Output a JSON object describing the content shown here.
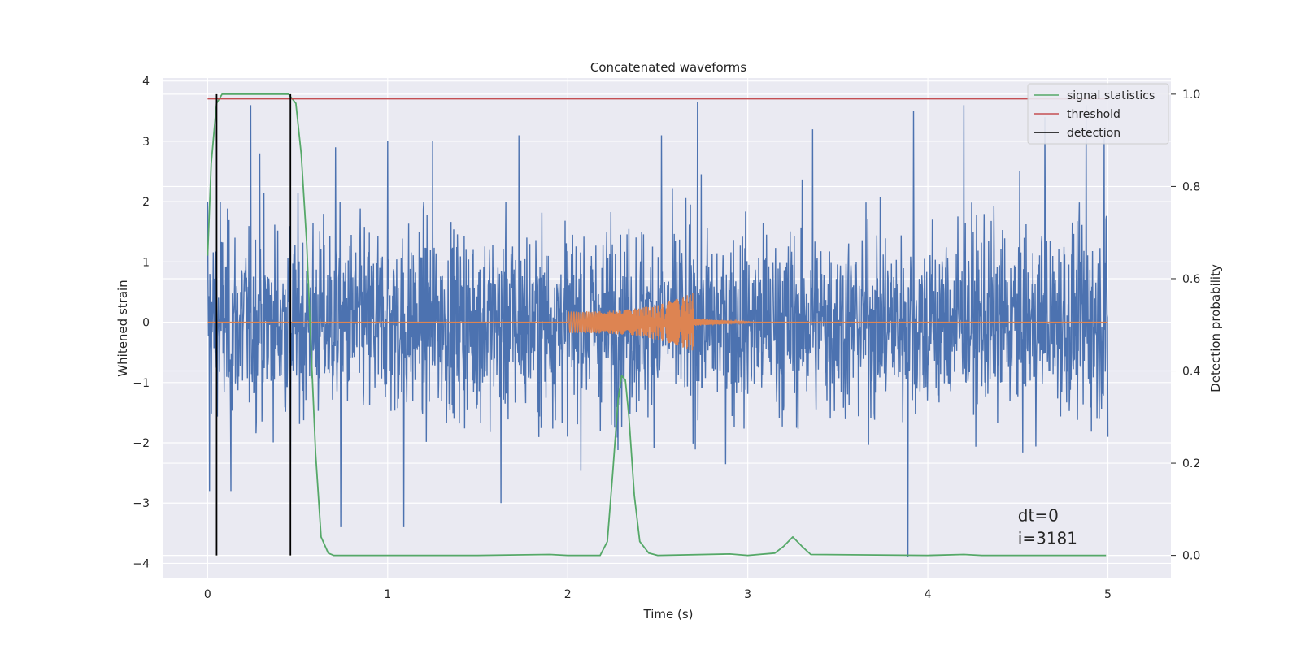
{
  "chart_data": {
    "type": "line",
    "title": "Concatenated waveforms",
    "xlabel": "Time (s)",
    "ylabel": "Whitened strain",
    "y2label": "Detection probability",
    "xlim": [
      -0.25,
      5.35
    ],
    "ylim": [
      -4.25,
      4.05
    ],
    "y2lim": [
      -0.05,
      1.035
    ],
    "xticks": [
      0,
      1,
      2,
      3,
      4,
      5
    ],
    "yticks": [
      -4,
      -3,
      -2,
      -1,
      0,
      1,
      2,
      3,
      4
    ],
    "y2ticks": [
      0.0,
      0.2,
      0.4,
      0.6,
      0.8,
      1.0
    ],
    "grid": true,
    "legend_position": "top-right",
    "colors": {
      "noise": "#4c72b0",
      "template": "#dd8452",
      "statistics": "#55a868",
      "threshold": "#c44e52",
      "detection": "#000000",
      "background": "#eaeaf2"
    },
    "series": [
      {
        "name": "",
        "axis": "left",
        "kind": "noise",
        "x_range": [
          0,
          5
        ],
        "typical_amplitude": 1.0,
        "peaks": [
          {
            "x": 0.0,
            "y": 2.0
          },
          {
            "x": 0.01,
            "y": -2.8
          },
          {
            "x": 0.07,
            "y": 2.0
          },
          {
            "x": 0.13,
            "y": -2.8
          },
          {
            "x": 0.24,
            "y": 3.6
          },
          {
            "x": 0.29,
            "y": 2.8
          },
          {
            "x": 0.46,
            "y": -2.6
          },
          {
            "x": 0.71,
            "y": 2.9
          },
          {
            "x": 0.74,
            "y": -3.4
          },
          {
            "x": 1.0,
            "y": 3.0
          },
          {
            "x": 1.09,
            "y": -3.4
          },
          {
            "x": 1.25,
            "y": 3.0
          },
          {
            "x": 1.63,
            "y": -3.0
          },
          {
            "x": 1.73,
            "y": 3.1
          },
          {
            "x": 2.52,
            "y": 3.1
          },
          {
            "x": 2.72,
            "y": 3.65
          },
          {
            "x": 3.36,
            "y": 3.2
          },
          {
            "x": 3.89,
            "y": -3.9
          },
          {
            "x": 3.92,
            "y": 3.5
          },
          {
            "x": 4.2,
            "y": 3.6
          },
          {
            "x": 4.65,
            "y": 3.4
          },
          {
            "x": 4.88,
            "y": 3.6
          },
          {
            "x": 4.98,
            "y": 3.2
          },
          {
            "x": 5.0,
            "y": -1.9
          }
        ]
      },
      {
        "name": "",
        "axis": "left",
        "kind": "chirp",
        "x_range": [
          0,
          5
        ],
        "chirp_start": 2.0,
        "chirp_end": 2.7,
        "amplitude_start": 0.18,
        "amplitude_end": 0.5
      },
      {
        "name": "signal statistics",
        "axis": "right",
        "x": [
          0.0,
          0.02,
          0.05,
          0.08,
          0.45,
          0.49,
          0.52,
          0.55,
          0.58,
          0.6,
          0.63,
          0.67,
          0.7,
          1.5,
          1.9,
          2.0,
          2.1,
          2.18,
          2.22,
          2.25,
          2.28,
          2.3,
          2.32,
          2.34,
          2.37,
          2.4,
          2.45,
          2.5,
          2.9,
          3.0,
          3.15,
          3.2,
          3.25,
          3.3,
          3.35,
          4.0,
          4.2,
          4.3,
          4.99
        ],
        "y": [
          0.65,
          0.85,
          0.98,
          1.0,
          1.0,
          0.98,
          0.87,
          0.68,
          0.4,
          0.22,
          0.04,
          0.005,
          0.0,
          0.0,
          0.002,
          0.0,
          0.0,
          0.0,
          0.03,
          0.18,
          0.34,
          0.39,
          0.38,
          0.3,
          0.13,
          0.03,
          0.005,
          0.0,
          0.003,
          0.0,
          0.005,
          0.02,
          0.04,
          0.02,
          0.002,
          0.0,
          0.002,
          0.0,
          0.0
        ]
      },
      {
        "name": "threshold",
        "axis": "right",
        "x": [
          0,
          5
        ],
        "y": [
          0.99,
          0.99
        ]
      }
    ],
    "detections": {
      "name": "detection",
      "axis": "right",
      "x": [
        0.05,
        0.46
      ],
      "ymin": 0.0,
      "ymax": 1.0
    },
    "legend": [
      "signal statistics",
      "threshold",
      "detection"
    ],
    "annotation": {
      "line1": "dt=0",
      "line2": "i=3181",
      "x": 4.5,
      "y": -3.3
    }
  }
}
